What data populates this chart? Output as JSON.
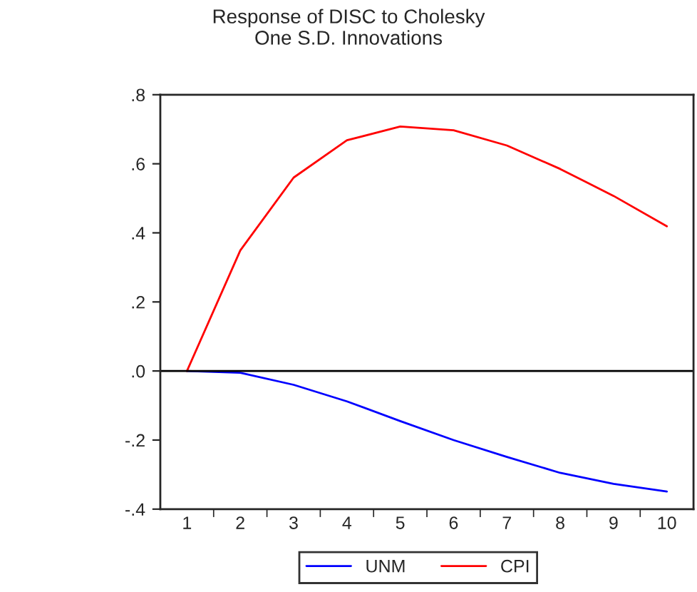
{
  "chart_data": {
    "type": "line",
    "title": "Response of DISC to Cholesky\nOne S.D. Innovations",
    "categories": [
      "1",
      "2",
      "3",
      "4",
      "5",
      "6",
      "7",
      "8",
      "9",
      "10"
    ],
    "series": [
      {
        "name": "UNM",
        "color": "#0000ff",
        "values": [
          0.0,
          -0.005,
          -0.04,
          -0.088,
          -0.145,
          -0.2,
          -0.249,
          -0.295,
          -0.327,
          -0.349
        ]
      },
      {
        "name": "CPI",
        "color": "#ff0000",
        "values": [
          0.0,
          0.349,
          0.56,
          0.668,
          0.708,
          0.697,
          0.653,
          0.585,
          0.507,
          0.419
        ]
      }
    ],
    "ylim": [
      -0.4,
      0.8
    ],
    "yticks": [
      {
        "value": -0.4,
        "label": "-.4"
      },
      {
        "value": -0.2,
        "label": "-.2"
      },
      {
        "value": 0.0,
        "label": ".0"
      },
      {
        "value": 0.2,
        "label": ".2"
      },
      {
        "value": 0.4,
        "label": ".4"
      },
      {
        "value": 0.6,
        "label": ".6"
      },
      {
        "value": 0.8,
        "label": ".8"
      }
    ],
    "ref_lines": [
      {
        "axis": "y",
        "value": 0.0,
        "color": "#000000"
      }
    ],
    "grid": false,
    "legend": "bottom",
    "marker": "none",
    "line_style": "solid"
  }
}
